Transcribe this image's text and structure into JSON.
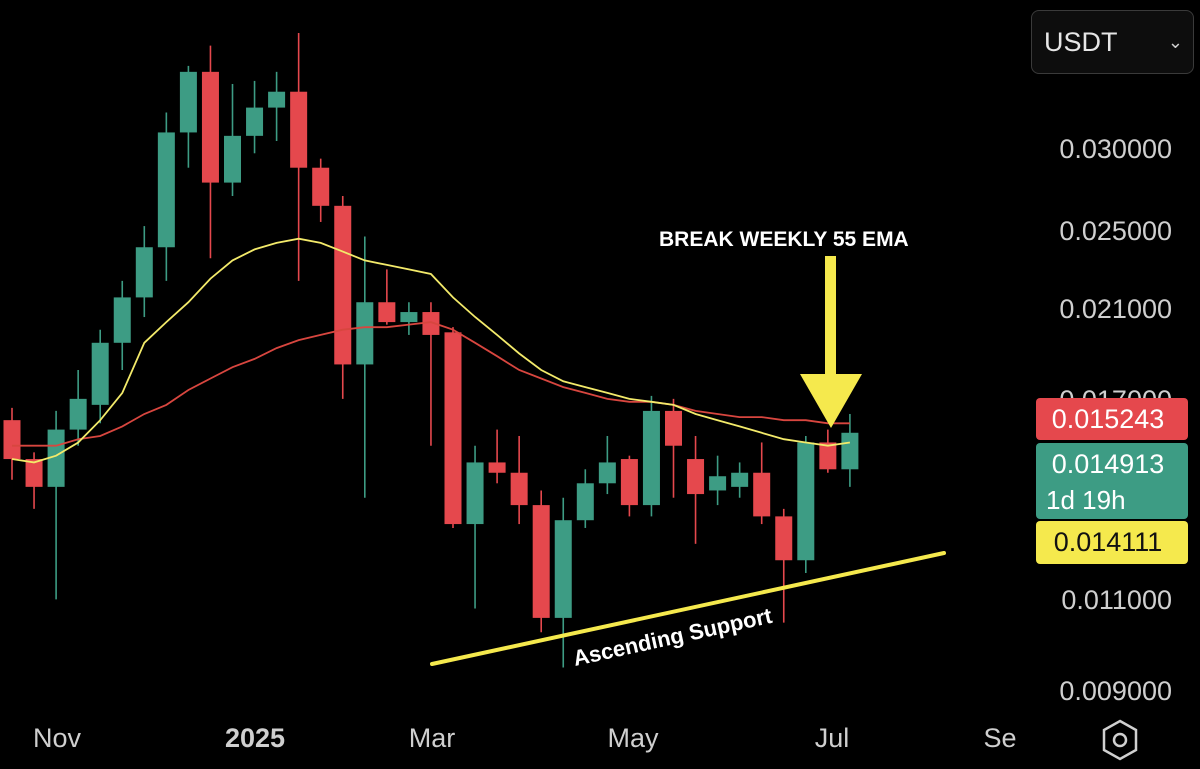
{
  "currency_selector": {
    "label": "USDT",
    "chevron_icon": "chevron-down-icon"
  },
  "settings": {
    "icon": "hexagon-gear-icon"
  },
  "chart_data": {
    "type": "candlestick",
    "x_ticks": [
      "Nov",
      "2025",
      "Mar",
      "May",
      "Jul",
      "Se"
    ],
    "y_ticks": [
      "0.030000",
      "0.025000",
      "0.021000",
      "0.017000",
      "0.011000",
      "0.009000"
    ],
    "ylim": [
      0.0085,
      0.034
    ],
    "y_scale": "log",
    "candles": [
      {
        "o": 0.0153,
        "h": 0.0157,
        "l": 0.0135,
        "c": 0.0141
      },
      {
        "o": 0.0141,
        "h": 0.0143,
        "l": 0.0127,
        "c": 0.0133
      },
      {
        "o": 0.0133,
        "h": 0.0156,
        "l": 0.0105,
        "c": 0.015
      },
      {
        "o": 0.015,
        "h": 0.017,
        "l": 0.0145,
        "c": 0.016
      },
      {
        "o": 0.0158,
        "h": 0.0185,
        "l": 0.0152,
        "c": 0.018
      },
      {
        "o": 0.018,
        "h": 0.0205,
        "l": 0.017,
        "c": 0.0198
      },
      {
        "o": 0.0198,
        "h": 0.023,
        "l": 0.019,
        "c": 0.022
      },
      {
        "o": 0.022,
        "h": 0.0292,
        "l": 0.0205,
        "c": 0.028
      },
      {
        "o": 0.028,
        "h": 0.0322,
        "l": 0.026,
        "c": 0.0318
      },
      {
        "o": 0.0318,
        "h": 0.0336,
        "l": 0.0215,
        "c": 0.0252
      },
      {
        "o": 0.0252,
        "h": 0.031,
        "l": 0.0245,
        "c": 0.0278
      },
      {
        "o": 0.0278,
        "h": 0.0312,
        "l": 0.0268,
        "c": 0.0295
      },
      {
        "o": 0.0295,
        "h": 0.0318,
        "l": 0.0275,
        "c": 0.0305
      },
      {
        "o": 0.0305,
        "h": 0.0345,
        "l": 0.0205,
        "c": 0.026
      },
      {
        "o": 0.026,
        "h": 0.0265,
        "l": 0.0232,
        "c": 0.024
      },
      {
        "o": 0.024,
        "h": 0.0245,
        "l": 0.016,
        "c": 0.0172
      },
      {
        "o": 0.0172,
        "h": 0.0225,
        "l": 0.013,
        "c": 0.0196
      },
      {
        "o": 0.0196,
        "h": 0.021,
        "l": 0.0187,
        "c": 0.0188
      },
      {
        "o": 0.0188,
        "h": 0.0196,
        "l": 0.0183,
        "c": 0.0192
      },
      {
        "o": 0.0192,
        "h": 0.0196,
        "l": 0.0145,
        "c": 0.0183
      },
      {
        "o": 0.0184,
        "h": 0.0186,
        "l": 0.0122,
        "c": 0.0123
      },
      {
        "o": 0.0123,
        "h": 0.0145,
        "l": 0.0103,
        "c": 0.014
      },
      {
        "o": 0.014,
        "h": 0.015,
        "l": 0.0134,
        "c": 0.0137
      },
      {
        "o": 0.0137,
        "h": 0.0148,
        "l": 0.0123,
        "c": 0.0128
      },
      {
        "o": 0.0128,
        "h": 0.0132,
        "l": 0.0098,
        "c": 0.0101
      },
      {
        "o": 0.0101,
        "h": 0.013,
        "l": 0.0091,
        "c": 0.0124
      },
      {
        "o": 0.0124,
        "h": 0.0138,
        "l": 0.0122,
        "c": 0.0134
      },
      {
        "o": 0.0134,
        "h": 0.0148,
        "l": 0.0131,
        "c": 0.014
      },
      {
        "o": 0.0141,
        "h": 0.0142,
        "l": 0.0125,
        "c": 0.0128
      },
      {
        "o": 0.0128,
        "h": 0.0161,
        "l": 0.0125,
        "c": 0.0156
      },
      {
        "o": 0.0156,
        "h": 0.016,
        "l": 0.013,
        "c": 0.0145
      },
      {
        "o": 0.0141,
        "h": 0.0148,
        "l": 0.0118,
        "c": 0.0131
      },
      {
        "o": 0.0132,
        "h": 0.0142,
        "l": 0.0128,
        "c": 0.0136
      },
      {
        "o": 0.0133,
        "h": 0.014,
        "l": 0.013,
        "c": 0.0137
      },
      {
        "o": 0.0137,
        "h": 0.0146,
        "l": 0.0123,
        "c": 0.0125
      },
      {
        "o": 0.0125,
        "h": 0.0127,
        "l": 0.01,
        "c": 0.0114
      },
      {
        "o": 0.0114,
        "h": 0.0148,
        "l": 0.0111,
        "c": 0.0146
      },
      {
        "o": 0.0146,
        "h": 0.015,
        "l": 0.0137,
        "c": 0.0138
      },
      {
        "o": 0.0138,
        "h": 0.0155,
        "l": 0.0133,
        "c": 0.0149
      }
    ],
    "ema_yellow": [
      0.0141,
      0.014,
      0.0142,
      0.0146,
      0.0153,
      0.0162,
      0.018,
      0.0188,
      0.0196,
      0.0206,
      0.0214,
      0.0219,
      0.0222,
      0.0224,
      0.0222,
      0.0218,
      0.0214,
      0.0212,
      0.021,
      0.0208,
      0.0198,
      0.019,
      0.0183,
      0.0176,
      0.017,
      0.0166,
      0.0164,
      0.0162,
      0.016,
      0.0159,
      0.0158,
      0.0155,
      0.0153,
      0.0151,
      0.0149,
      0.0147,
      0.0146,
      0.0145,
      0.0146
    ],
    "ema_red": [
      0.0145,
      0.0145,
      0.0145,
      0.0147,
      0.0148,
      0.0151,
      0.0155,
      0.0158,
      0.0163,
      0.0167,
      0.0171,
      0.0174,
      0.0178,
      0.0181,
      0.0183,
      0.0185,
      0.0186,
      0.0186,
      0.0187,
      0.0188,
      0.0185,
      0.018,
      0.0175,
      0.017,
      0.0167,
      0.0164,
      0.0162,
      0.016,
      0.0159,
      0.0159,
      0.0158,
      0.0156,
      0.0155,
      0.0154,
      0.0154,
      0.0153,
      0.0153,
      0.0152,
      0.0152
    ],
    "price_labels": [
      {
        "text": "0.015243",
        "color": "#e5484d",
        "text_color": "#ffffff"
      },
      {
        "text": "0.014913",
        "sub": "1d 19h",
        "color": "#3d9c84",
        "text_color": "#ffffff"
      },
      {
        "text": "0.014111",
        "color": "#f5e94d",
        "text_color": "#111111"
      }
    ],
    "annotations": {
      "headline": "BREAK WEEKLY 55 EMA",
      "support_label": "Ascending Support"
    },
    "colors": {
      "up": "#3d9c84",
      "down": "#e5484d",
      "ema_fast": "#f3ea6a",
      "ema_slow": "#d8463f",
      "support": "#f5e94d",
      "arrow": "#f5e94d"
    }
  }
}
